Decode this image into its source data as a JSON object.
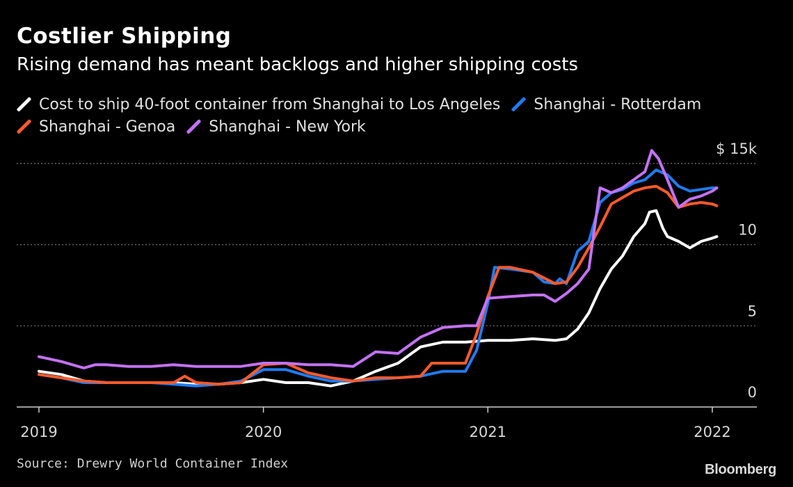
{
  "title": "Costlier Shipping",
  "subtitle": "Rising demand has meant backlogs and higher shipping costs",
  "source": "Source: Drewry World Container Index",
  "brand": "Bloomberg",
  "chart_data": {
    "type": "line",
    "xlim": [
      2019.0,
      2022.2
    ],
    "ylim": [
      0,
      15
    ],
    "x_ticks": [
      {
        "value": 2019,
        "label": "2019"
      },
      {
        "value": 2020,
        "label": "2020"
      },
      {
        "value": 2021,
        "label": "2021"
      },
      {
        "value": 2022,
        "label": "2022"
      }
    ],
    "y_ticks": [
      {
        "value": 15,
        "label": "$ 15k"
      },
      {
        "value": 10,
        "label": "10"
      },
      {
        "value": 5,
        "label": "5"
      },
      {
        "value": 0,
        "label": "0"
      }
    ],
    "grid": "horizontal-dotted",
    "legend_position": "top",
    "series": [
      {
        "name": "Cost to ship 40-foot container from Shanghai to Los Angeles",
        "color": "#ffffff",
        "points": [
          [
            2019.0,
            2.2
          ],
          [
            2019.1,
            2.0
          ],
          [
            2019.2,
            1.6
          ],
          [
            2019.3,
            1.5
          ],
          [
            2019.4,
            1.5
          ],
          [
            2019.5,
            1.5
          ],
          [
            2019.6,
            1.5
          ],
          [
            2019.7,
            1.4
          ],
          [
            2019.8,
            1.4
          ],
          [
            2019.9,
            1.5
          ],
          [
            2020.0,
            1.7
          ],
          [
            2020.1,
            1.5
          ],
          [
            2020.2,
            1.5
          ],
          [
            2020.3,
            1.3
          ],
          [
            2020.4,
            1.6
          ],
          [
            2020.5,
            2.2
          ],
          [
            2020.6,
            2.7
          ],
          [
            2020.7,
            3.7
          ],
          [
            2020.8,
            4.0
          ],
          [
            2020.9,
            4.0
          ],
          [
            2021.0,
            4.1
          ],
          [
            2021.1,
            4.1
          ],
          [
            2021.2,
            4.2
          ],
          [
            2021.3,
            4.1
          ],
          [
            2021.35,
            4.2
          ],
          [
            2021.4,
            4.8
          ],
          [
            2021.45,
            5.8
          ],
          [
            2021.5,
            7.3
          ],
          [
            2021.55,
            8.5
          ],
          [
            2021.6,
            9.3
          ],
          [
            2021.65,
            10.5
          ],
          [
            2021.7,
            11.3
          ],
          [
            2021.72,
            12.0
          ],
          [
            2021.75,
            12.1
          ],
          [
            2021.78,
            11.0
          ],
          [
            2021.8,
            10.5
          ],
          [
            2021.85,
            10.2
          ],
          [
            2021.9,
            9.8
          ],
          [
            2021.95,
            10.2
          ],
          [
            2022.0,
            10.4
          ],
          [
            2022.02,
            10.5
          ]
        ]
      },
      {
        "name": "Shanghai - Rotterdam",
        "color": "#1f7cf2",
        "points": [
          [
            2019.0,
            2.0
          ],
          [
            2019.1,
            1.8
          ],
          [
            2019.2,
            1.5
          ],
          [
            2019.3,
            1.5
          ],
          [
            2019.4,
            1.5
          ],
          [
            2019.5,
            1.5
          ],
          [
            2019.6,
            1.4
          ],
          [
            2019.7,
            1.3
          ],
          [
            2019.8,
            1.4
          ],
          [
            2019.9,
            1.6
          ],
          [
            2020.0,
            2.3
          ],
          [
            2020.1,
            2.3
          ],
          [
            2020.2,
            1.9
          ],
          [
            2020.3,
            1.6
          ],
          [
            2020.4,
            1.6
          ],
          [
            2020.5,
            1.7
          ],
          [
            2020.6,
            1.8
          ],
          [
            2020.7,
            1.9
          ],
          [
            2020.8,
            2.2
          ],
          [
            2020.9,
            2.2
          ],
          [
            2020.95,
            3.5
          ],
          [
            2021.0,
            6.4
          ],
          [
            2021.03,
            8.6
          ],
          [
            2021.1,
            8.5
          ],
          [
            2021.2,
            8.3
          ],
          [
            2021.25,
            7.7
          ],
          [
            2021.3,
            7.6
          ],
          [
            2021.32,
            7.9
          ],
          [
            2021.35,
            7.6
          ],
          [
            2021.4,
            9.6
          ],
          [
            2021.45,
            10.2
          ],
          [
            2021.5,
            12.6
          ],
          [
            2021.55,
            13.2
          ],
          [
            2021.6,
            13.4
          ],
          [
            2021.65,
            13.8
          ],
          [
            2021.7,
            14.0
          ],
          [
            2021.75,
            14.6
          ],
          [
            2021.8,
            14.3
          ],
          [
            2021.85,
            13.6
          ],
          [
            2021.9,
            13.3
          ],
          [
            2021.95,
            13.4
          ],
          [
            2022.0,
            13.5
          ],
          [
            2022.02,
            13.5
          ]
        ]
      },
      {
        "name": "Shanghai - Genoa",
        "color": "#ff5a2a",
        "points": [
          [
            2019.0,
            2.0
          ],
          [
            2019.1,
            1.8
          ],
          [
            2019.2,
            1.6
          ],
          [
            2019.3,
            1.5
          ],
          [
            2019.4,
            1.5
          ],
          [
            2019.5,
            1.5
          ],
          [
            2019.6,
            1.5
          ],
          [
            2019.65,
            1.9
          ],
          [
            2019.7,
            1.5
          ],
          [
            2019.8,
            1.4
          ],
          [
            2019.9,
            1.5
          ],
          [
            2020.0,
            2.6
          ],
          [
            2020.1,
            2.7
          ],
          [
            2020.2,
            2.1
          ],
          [
            2020.3,
            1.8
          ],
          [
            2020.4,
            1.6
          ],
          [
            2020.5,
            1.8
          ],
          [
            2020.6,
            1.8
          ],
          [
            2020.7,
            1.9
          ],
          [
            2020.75,
            2.7
          ],
          [
            2020.9,
            2.7
          ],
          [
            2020.95,
            4.5
          ],
          [
            2021.0,
            6.8
          ],
          [
            2021.05,
            8.6
          ],
          [
            2021.1,
            8.6
          ],
          [
            2021.2,
            8.3
          ],
          [
            2021.3,
            7.6
          ],
          [
            2021.35,
            7.7
          ],
          [
            2021.4,
            8.6
          ],
          [
            2021.45,
            9.8
          ],
          [
            2021.5,
            11.1
          ],
          [
            2021.55,
            12.5
          ],
          [
            2021.6,
            12.9
          ],
          [
            2021.65,
            13.3
          ],
          [
            2021.7,
            13.5
          ],
          [
            2021.75,
            13.6
          ],
          [
            2021.8,
            13.2
          ],
          [
            2021.85,
            12.3
          ],
          [
            2021.9,
            12.5
          ],
          [
            2021.95,
            12.6
          ],
          [
            2022.0,
            12.5
          ],
          [
            2022.02,
            12.4
          ]
        ]
      },
      {
        "name": "Shanghai - New York",
        "color": "#c472f7",
        "points": [
          [
            2019.0,
            3.1
          ],
          [
            2019.1,
            2.8
          ],
          [
            2019.2,
            2.4
          ],
          [
            2019.25,
            2.6
          ],
          [
            2019.3,
            2.6
          ],
          [
            2019.4,
            2.5
          ],
          [
            2019.5,
            2.5
          ],
          [
            2019.6,
            2.6
          ],
          [
            2019.7,
            2.5
          ],
          [
            2019.8,
            2.5
          ],
          [
            2019.9,
            2.5
          ],
          [
            2020.0,
            2.7
          ],
          [
            2020.1,
            2.7
          ],
          [
            2020.2,
            2.6
          ],
          [
            2020.3,
            2.6
          ],
          [
            2020.4,
            2.5
          ],
          [
            2020.5,
            3.4
          ],
          [
            2020.6,
            3.3
          ],
          [
            2020.7,
            4.3
          ],
          [
            2020.8,
            4.9
          ],
          [
            2020.9,
            5.0
          ],
          [
            2020.95,
            5.0
          ],
          [
            2021.0,
            6.7
          ],
          [
            2021.1,
            6.8
          ],
          [
            2021.2,
            6.9
          ],
          [
            2021.25,
            6.9
          ],
          [
            2021.3,
            6.5
          ],
          [
            2021.35,
            7.0
          ],
          [
            2021.4,
            7.6
          ],
          [
            2021.45,
            8.5
          ],
          [
            2021.5,
            13.5
          ],
          [
            2021.55,
            13.2
          ],
          [
            2021.6,
            13.5
          ],
          [
            2021.65,
            14.0
          ],
          [
            2021.7,
            14.5
          ],
          [
            2021.73,
            15.8
          ],
          [
            2021.76,
            15.3
          ],
          [
            2021.8,
            14.0
          ],
          [
            2021.85,
            12.3
          ],
          [
            2021.9,
            12.8
          ],
          [
            2021.95,
            13.0
          ],
          [
            2022.0,
            13.3
          ],
          [
            2022.02,
            13.5
          ]
        ]
      }
    ]
  }
}
